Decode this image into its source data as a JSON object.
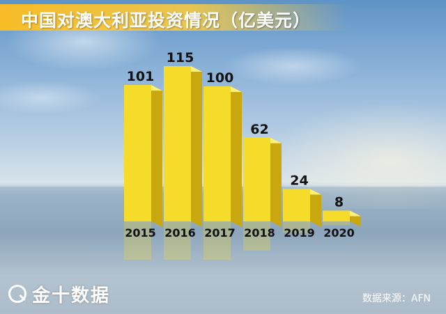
{
  "title": "中国对澳大利亚投资情况（亿美元）",
  "source": "数据来源：AFN",
  "logo_text": "金十数据",
  "colors": {
    "bar_front": "#f5dc2a",
    "bar_side": "#c9a80f",
    "bar_top": "#fff07a",
    "label": "#111111",
    "title_banner": "#ffbe1e"
  },
  "chart_data": {
    "type": "bar",
    "categories": [
      "2015",
      "2016",
      "2017",
      "2018",
      "2019",
      "2020"
    ],
    "values": [
      101,
      115,
      100,
      62,
      24,
      8
    ],
    "ylim": [
      0,
      115
    ],
    "grid": false,
    "legend": "none"
  }
}
